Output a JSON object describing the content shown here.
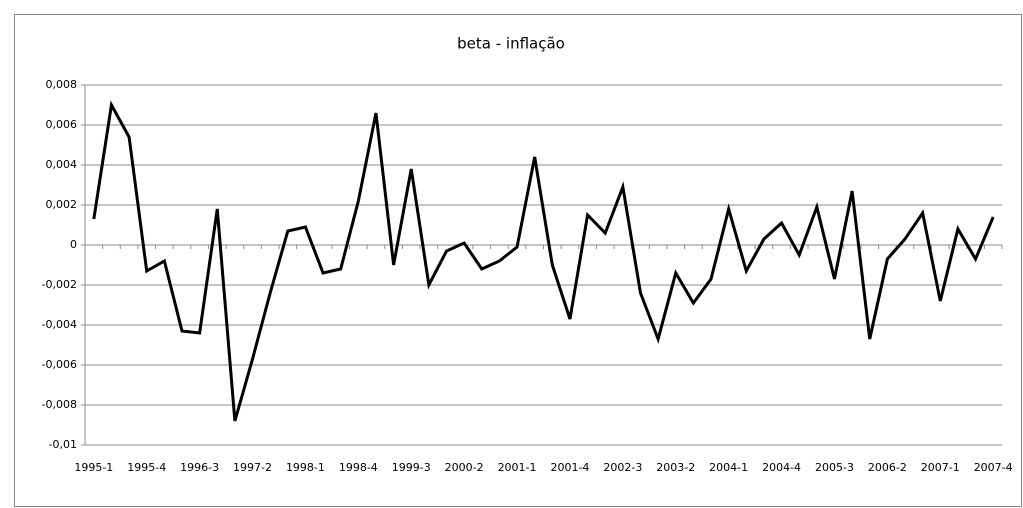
{
  "chart_data": {
    "type": "line",
    "title": "beta - inflação",
    "categories": [
      "1995-1",
      null,
      null,
      "1995-4",
      null,
      null,
      "1996-3",
      null,
      null,
      "1997-2",
      null,
      null,
      "1998-1",
      null,
      null,
      "1998-4",
      null,
      null,
      "1999-3",
      null,
      null,
      "2000-2",
      null,
      null,
      "2001-1",
      null,
      null,
      "2001-4",
      null,
      null,
      "2002-3",
      null,
      null,
      "2003-2",
      null,
      null,
      "2004-1",
      null,
      null,
      "2004-4",
      null,
      null,
      "2005-3",
      null,
      null,
      "2006-2",
      null,
      null,
      "2007-1",
      null,
      null,
      "2007-4"
    ],
    "values": [
      0.0013,
      0.007,
      0.0054,
      -0.0013,
      -0.0008,
      -0.0043,
      -0.0044,
      0.0018,
      -0.0088,
      -0.0057,
      -0.0024,
      0.0007,
      0.0009,
      -0.0014,
      -0.0012,
      0.0022,
      0.0066,
      -0.001,
      0.0038,
      -0.002,
      -0.0003,
      0.0001,
      -0.0012,
      -0.0008,
      -0.0001,
      0.0044,
      -0.001,
      -0.0037,
      0.0015,
      0.0006,
      0.0029,
      -0.0024,
      -0.0047,
      -0.0014,
      -0.0029,
      -0.0017,
      0.0018,
      -0.0013,
      0.0003,
      0.0011,
      -0.0005,
      0.0019,
      -0.0017,
      0.0027,
      -0.0047,
      -0.0007,
      0.0003,
      0.0016,
      -0.0028,
      0.0008,
      -0.0007,
      0.0014
    ],
    "color": "#000000",
    "ylim": [
      -0.01,
      0.008
    ],
    "yticks": [
      {
        "value": -0.01,
        "label": "-0,01"
      },
      {
        "value": -0.008,
        "label": "-0,008"
      },
      {
        "value": -0.006,
        "label": "-0,006"
      },
      {
        "value": -0.004,
        "label": "-0,004"
      },
      {
        "value": -0.002,
        "label": "-0,002"
      },
      0,
      {
        "value": 0.002,
        "label": "0,002"
      },
      {
        "value": 0.004,
        "label": "0,004"
      },
      {
        "value": 0.006,
        "label": "0,006"
      },
      {
        "value": 0.008,
        "label": "0,008"
      }
    ],
    "grid": true
  }
}
